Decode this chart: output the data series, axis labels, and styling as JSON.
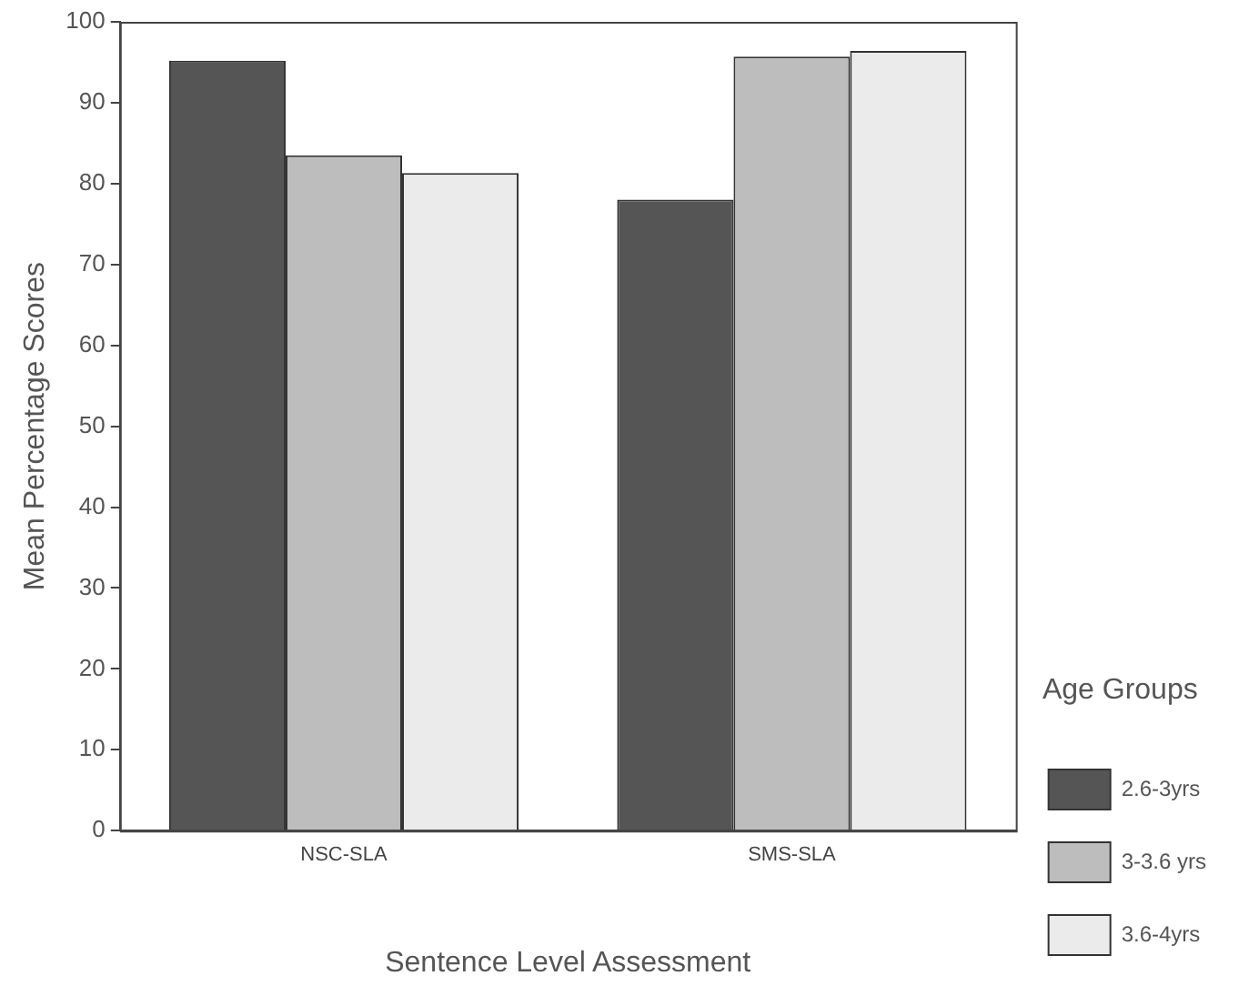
{
  "chart_data": {
    "type": "bar",
    "xlabel": "Sentence Level Assessment",
    "ylabel": "Mean Percentage Scores",
    "legend_title": "Age Groups",
    "categories": [
      "NSC-SLA",
      "SMS-SLA"
    ],
    "series": [
      {
        "name": "2.6-3yrs",
        "color": "#555555",
        "values": [
          95.2,
          78
        ]
      },
      {
        "name": "3-3.6 yrs",
        "color": "#bdbdbd",
        "values": [
          83.5,
          95.7
        ]
      },
      {
        "name": "3.6-4yrs",
        "color": "#ebebeb",
        "values": [
          81.3,
          96.4
        ]
      }
    ],
    "ylim": [
      0,
      100
    ],
    "yticks": [
      0,
      10,
      20,
      30,
      40,
      50,
      60,
      70,
      80,
      90,
      100
    ],
    "grid": false,
    "legend": "right"
  }
}
